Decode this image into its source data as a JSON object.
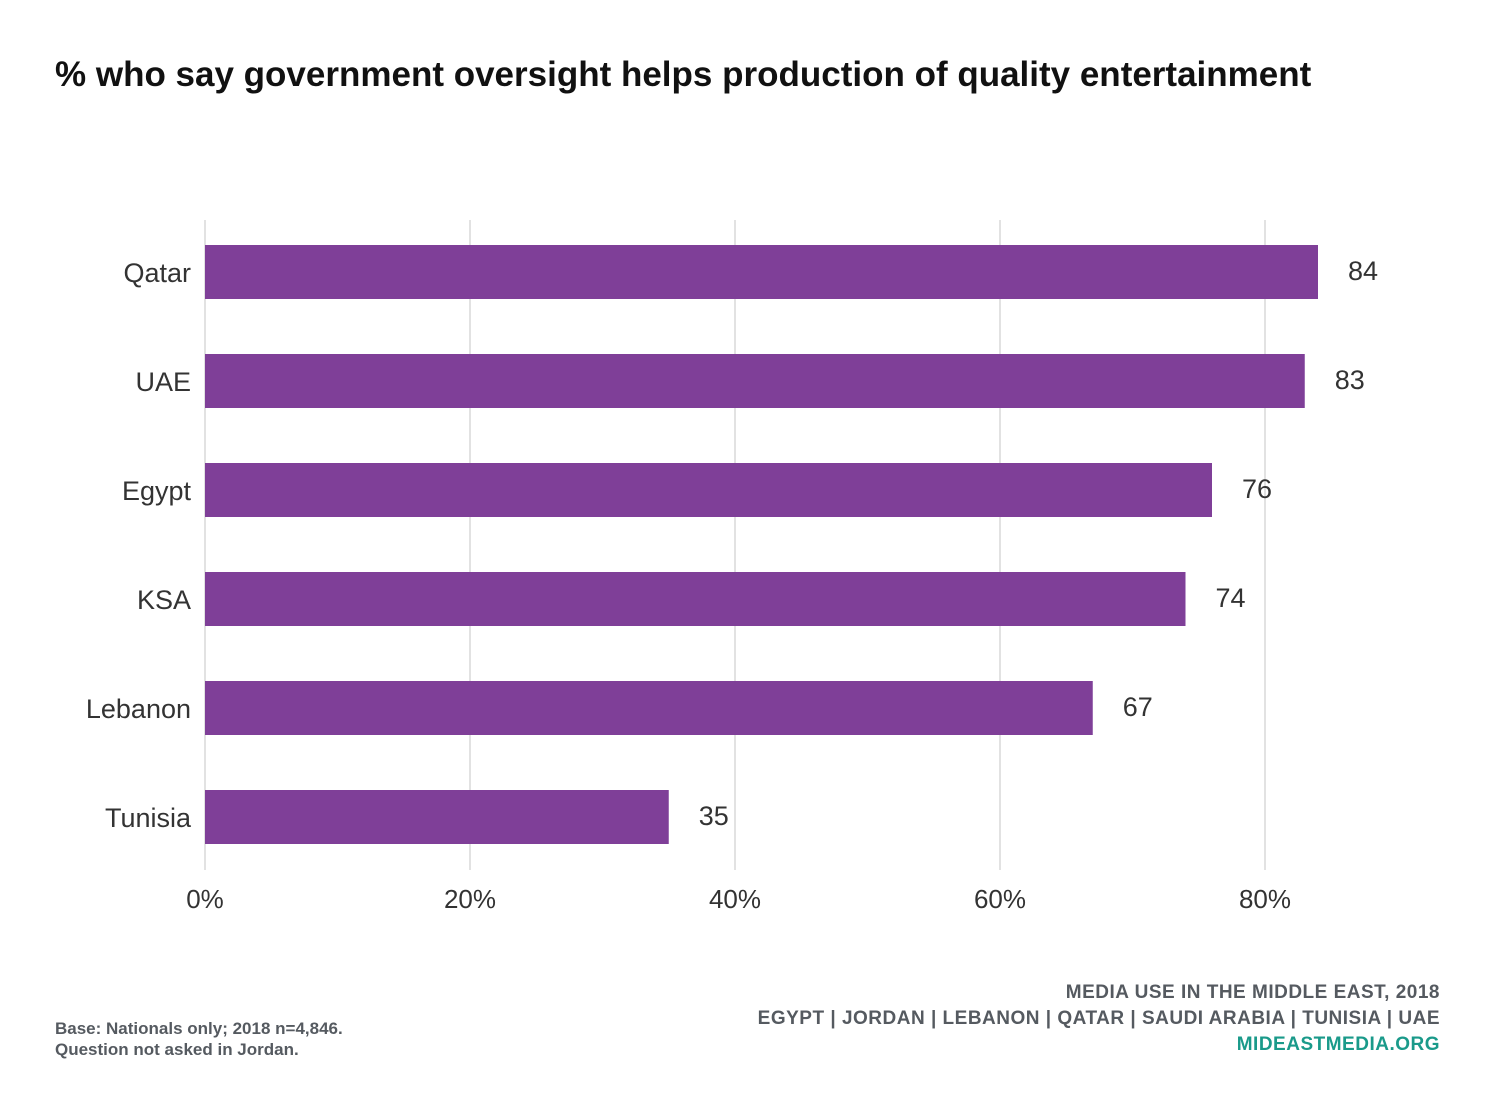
{
  "title": "% who say government oversight helps production of quality entertainment",
  "footnote": {
    "line1": "Base: Nationals only; 2018 n=4,846.",
    "line2": "Question not asked in Jordan."
  },
  "source": {
    "line1": "MEDIA USE IN THE MIDDLE EAST, 2018",
    "line2": "EGYPT | JORDAN | LEBANON | QATAR | SAUDI ARABIA | TUNISIA | UAE",
    "site": "MIDEASTMEDIA.ORG"
  },
  "colors": {
    "bar": "#7f3f98",
    "grid": "#d9d9d9",
    "site": "#1a9a8a"
  },
  "chart_data": {
    "type": "bar",
    "orientation": "horizontal",
    "categories": [
      "Qatar",
      "UAE",
      "Egypt",
      "KSA",
      "Lebanon",
      "Tunisia"
    ],
    "values": [
      84,
      83,
      76,
      74,
      67,
      35
    ],
    "xticks": [
      "0%",
      "20%",
      "40%",
      "60%",
      "80%"
    ],
    "xtick_values": [
      0,
      20,
      40,
      60,
      80
    ],
    "xlim": [
      0,
      100
    ],
    "grid": true,
    "legend": "none"
  }
}
